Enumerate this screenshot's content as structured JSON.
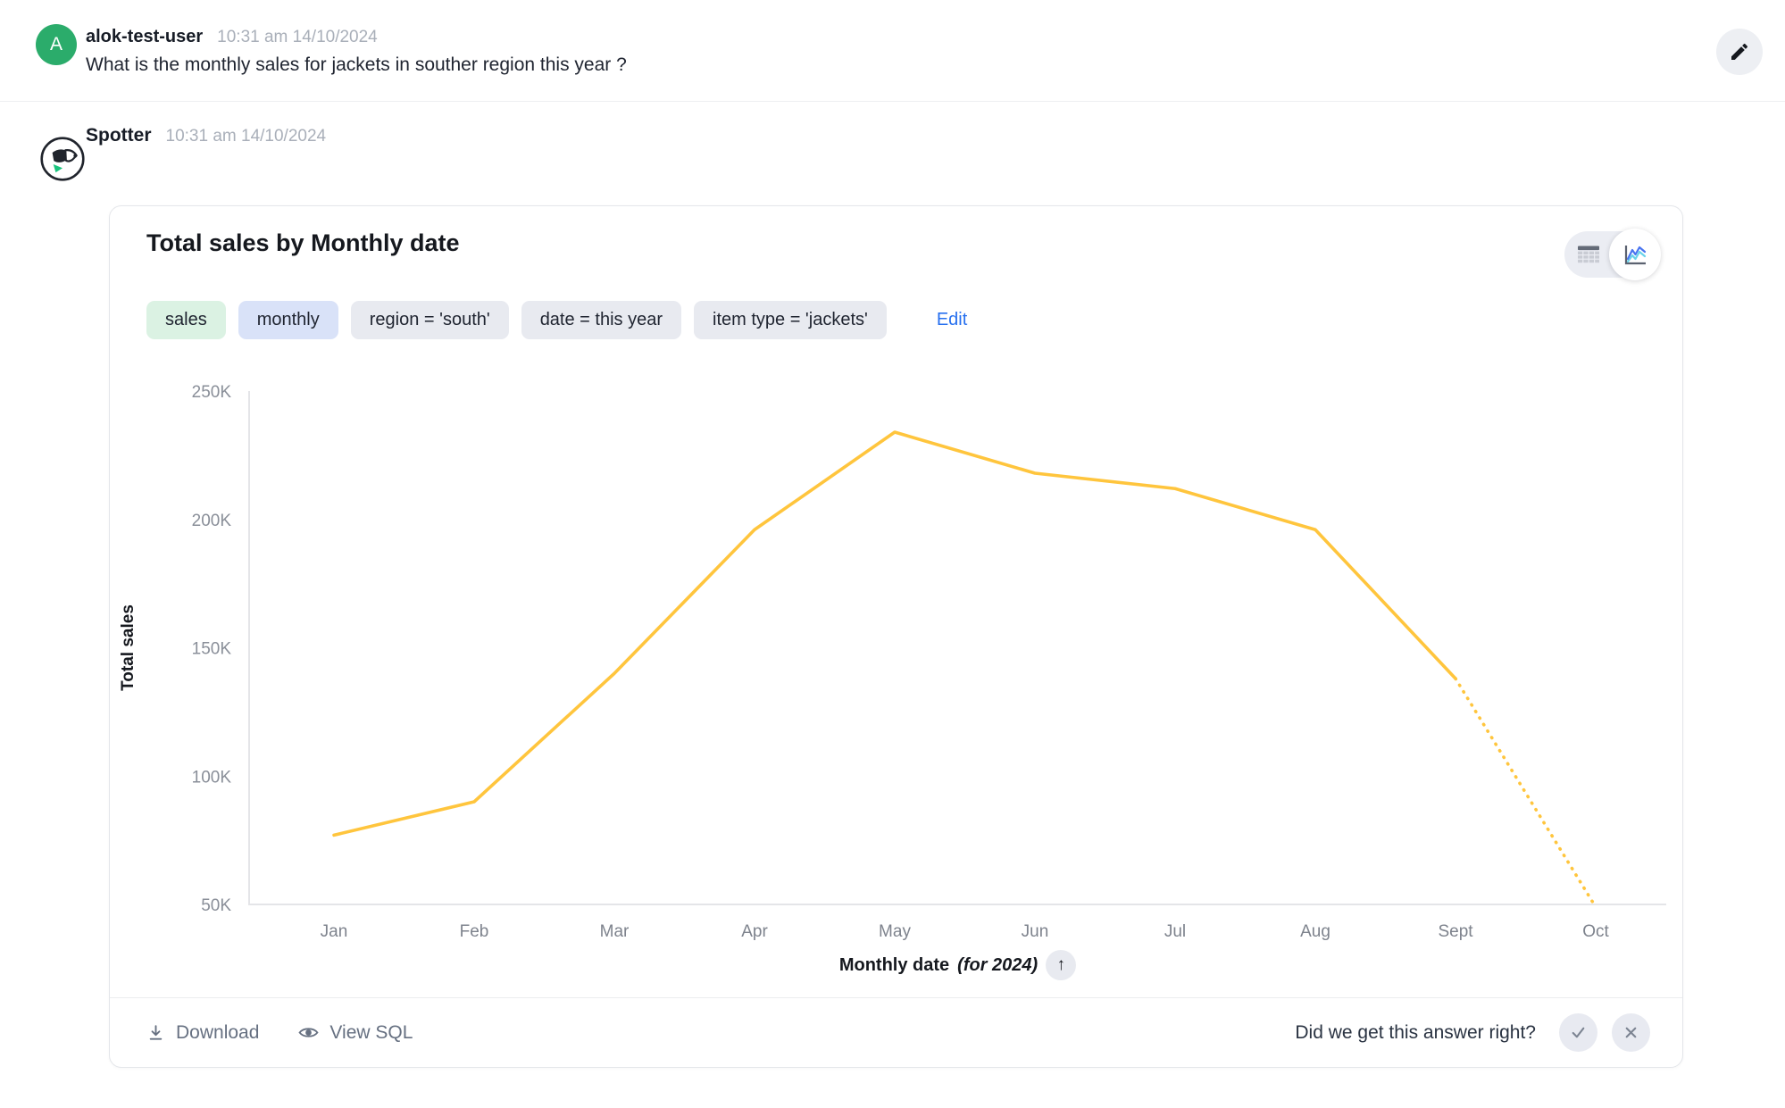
{
  "user_message": {
    "avatar_initial": "A",
    "username": "alok-test-user",
    "timestamp": "10:31 am 14/10/2024",
    "text": "What is the monthly sales for jackets in souther region this year ?"
  },
  "bot": {
    "name": "Spotter",
    "timestamp": "10:31 am 14/10/2024"
  },
  "card": {
    "title": "Total sales by Monthly date",
    "chips": [
      {
        "label": "sales",
        "type": "measure"
      },
      {
        "label": "monthly",
        "type": "time-bucket"
      },
      {
        "label": "region = 'south'",
        "type": "filter"
      },
      {
        "label": "date = this year",
        "type": "filter"
      },
      {
        "label": "item type = 'jackets'",
        "type": "filter"
      }
    ],
    "edit_label": "Edit",
    "footer": {
      "download_label": "Download",
      "view_sql_label": "View SQL",
      "feedback_question": "Did we get this answer right?"
    }
  },
  "icons": {
    "up_arrow": "↑"
  },
  "colors": {
    "accent_line": "#FFC53D",
    "avatar_green": "#2BAC6B",
    "edit_link_blue": "#2770EF",
    "chip_green_bg": "#DBF2E3",
    "chip_blue_bg": "#D9E2F8",
    "chip_gray_bg": "#E8EAF0",
    "axis_gray": "#E4E5E8"
  },
  "chart_data": {
    "type": "line",
    "title": "Total sales by Monthly date",
    "x": [
      "Jan",
      "Feb",
      "Mar",
      "Apr",
      "May",
      "Jun",
      "Jul",
      "Aug",
      "Sept",
      "Oct"
    ],
    "values": [
      77000,
      90000,
      140000,
      196000,
      234000,
      218000,
      212000,
      196000,
      138000,
      49000
    ],
    "series_name": "Total sales",
    "xlabel": "Monthly date",
    "xlabel_suffix": "(for 2024)",
    "ylabel": "Total sales",
    "ylim": [
      50000,
      250000
    ],
    "yticks": [
      "50K",
      "100K",
      "150K",
      "200K",
      "250K"
    ],
    "line_color": "#FFC53D",
    "dashed_from_index": 8,
    "grid": false,
    "legend": false
  }
}
